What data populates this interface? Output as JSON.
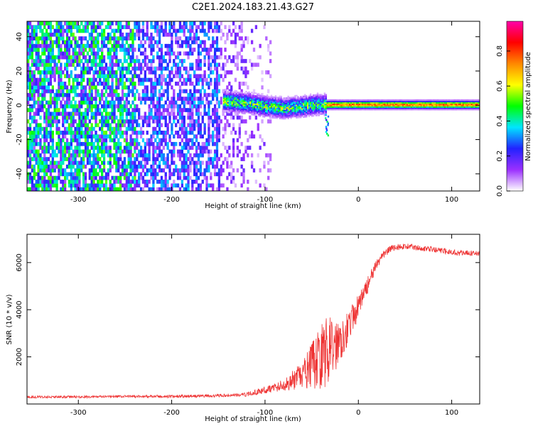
{
  "title": "C2E1.2024.183.21.43.G27",
  "chart_data": [
    {
      "type": "heatmap",
      "panel": "spectrogram",
      "xlabel": "Height of straight line (km)",
      "ylabel": "Frequency (Hz)",
      "xlim": [
        -355,
        130
      ],
      "ylim": [
        -50,
        49
      ],
      "x_ticks": [
        -300,
        -200,
        -100,
        0,
        100
      ],
      "y_ticks": [
        -40,
        -20,
        0,
        20,
        40
      ],
      "colorbar": {
        "label": "Normalized spectral amplitude",
        "range": [
          0,
          0.97
        ],
        "ticks": [
          0.0,
          0.2,
          0.4,
          0.6,
          0.8
        ],
        "colormap": [
          "#ffffff",
          "#9b30ff",
          "#2222ff",
          "#00e5ff",
          "#00ff00",
          "#ffff00",
          "#ff8800",
          "#ff0000",
          "#ff00aa"
        ]
      },
      "regions": [
        {
          "x": [
            -355,
            -240
          ],
          "freq": [
            -50,
            49
          ],
          "amplitude": 0.3,
          "description": "broadband noise"
        },
        {
          "x": [
            -240,
            -150
          ],
          "freq": [
            -50,
            49
          ],
          "amplitude": 0.2
        },
        {
          "x": [
            -150,
            -100
          ],
          "freq": [
            -50,
            49
          ],
          "amplitude": 0.1
        },
        {
          "x": [
            -145,
            -35
          ],
          "freq": [
            -5,
            5
          ],
          "amplitude": 0.45
        },
        {
          "x": [
            -35,
            130
          ],
          "freq": [
            -2,
            2
          ],
          "amplitude": 0.8
        }
      ],
      "signal_center_hz": [
        [
          -145,
          2
        ],
        [
          -120,
          1
        ],
        [
          -100,
          -1
        ],
        [
          -80,
          -2
        ],
        [
          -60,
          -1
        ],
        [
          -45,
          0
        ],
        [
          -35,
          0
        ],
        [
          0,
          0
        ],
        [
          50,
          0
        ],
        [
          100,
          0
        ],
        [
          130,
          0
        ]
      ]
    },
    {
      "type": "line",
      "panel": "snr",
      "xlabel": "Height of straight line (km)",
      "ylabel": "SNR (10 * v/v)",
      "xlim": [
        -355,
        130
      ],
      "ylim": [
        0,
        7200
      ],
      "x_ticks": [
        -300,
        -200,
        -100,
        0,
        100
      ],
      "y_ticks": [
        2000,
        4000,
        6000
      ],
      "series": [
        {
          "color": "#ee3333",
          "x": [
            -355,
            -300,
            -250,
            -200,
            -150,
            -120,
            -100,
            -80,
            -60,
            -45,
            -35,
            -25,
            -15,
            -5,
            5,
            15,
            25,
            35,
            50,
            70,
            90,
            110,
            130
          ],
          "y": [
            300,
            300,
            320,
            320,
            350,
            400,
            600,
            800,
            1200,
            1800,
            2200,
            2500,
            3000,
            3700,
            4600,
            5500,
            6300,
            6600,
            6700,
            6600,
            6500,
            6400,
            6400
          ],
          "noise": [
            50,
            50,
            50,
            60,
            60,
            80,
            150,
            250,
            600,
            1200,
            1500,
            1200,
            800,
            600,
            400,
            300,
            200,
            150,
            120,
            120,
            120,
            120,
            120
          ]
        }
      ]
    }
  ]
}
